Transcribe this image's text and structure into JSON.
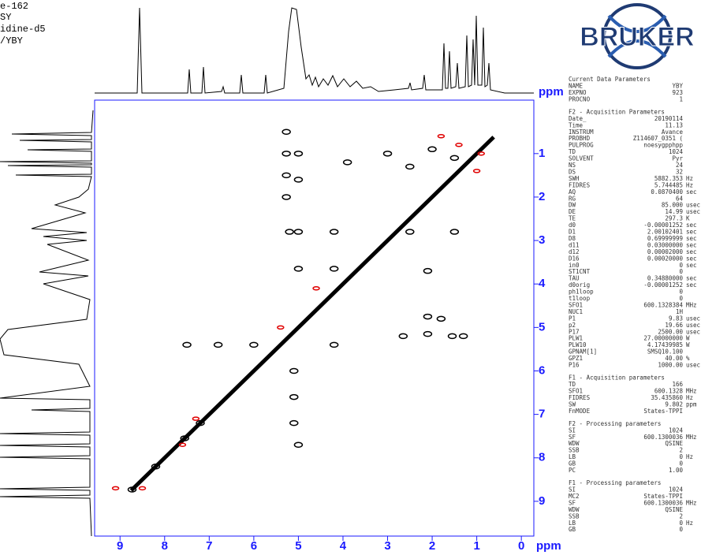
{
  "header_lines": [
    "e-162",
    "SY",
    "idine-d5",
    "/YBY"
  ],
  "logo": "BRUKER",
  "chart_data": {
    "type": "contour",
    "x_label": "ppm",
    "y_label": "ppm",
    "xlim": [
      9.57,
      -0.28
    ],
    "ylim": [
      9.8,
      -0.23
    ],
    "xticks": [
      9,
      8,
      7,
      6,
      5,
      4,
      3,
      2,
      1,
      0
    ],
    "yticks": [
      1,
      2,
      3,
      4,
      5,
      6,
      7,
      8,
      9
    ],
    "diagonal": [
      8.75,
      0.62
    ],
    "positive_color": "#000000",
    "negative_color": "#e00000",
    "peaks": [
      {
        "x": 8.73,
        "y": 8.73
      },
      {
        "x": 5.27,
        "y": 0.5
      },
      {
        "x": 5.27,
        "y": 1.0
      },
      {
        "x": 5.27,
        "y": 1.5
      },
      {
        "x": 5.27,
        "y": 2.0
      },
      {
        "x": 5.0,
        "y": 1.0
      },
      {
        "x": 5.0,
        "y": 1.6
      },
      {
        "x": 3.9,
        "y": 1.2
      },
      {
        "x": 3.0,
        "y": 1.0
      },
      {
        "x": 2.5,
        "y": 1.3
      },
      {
        "x": 2.0,
        "y": 0.9
      },
      {
        "x": 1.5,
        "y": 1.1
      },
      {
        "x": 5.2,
        "y": 2.8
      },
      {
        "x": 5.0,
        "y": 2.8
      },
      {
        "x": 4.2,
        "y": 2.8
      },
      {
        "x": 2.5,
        "y": 2.8
      },
      {
        "x": 1.5,
        "y": 2.8
      },
      {
        "x": 5.0,
        "y": 3.65
      },
      {
        "x": 4.2,
        "y": 3.65
      },
      {
        "x": 2.1,
        "y": 3.7
      },
      {
        "x": 2.1,
        "y": 4.75
      },
      {
        "x": 1.8,
        "y": 4.8
      },
      {
        "x": 2.1,
        "y": 5.15
      },
      {
        "x": 1.55,
        "y": 5.2
      },
      {
        "x": 1.3,
        "y": 5.2
      },
      {
        "x": 2.65,
        "y": 5.2
      },
      {
        "x": 7.5,
        "y": 5.4
      },
      {
        "x": 6.8,
        "y": 5.4
      },
      {
        "x": 6.0,
        "y": 5.4
      },
      {
        "x": 4.2,
        "y": 5.4
      },
      {
        "x": 5.1,
        "y": 6.0
      },
      {
        "x": 5.1,
        "y": 6.6
      },
      {
        "x": 5.1,
        "y": 7.2
      },
      {
        "x": 5.0,
        "y": 7.7
      },
      {
        "x": 7.2,
        "y": 7.2
      },
      {
        "x": 7.55,
        "y": 7.55
      },
      {
        "x": 8.2,
        "y": 8.2
      }
    ],
    "negative_peaks": [
      {
        "x": 1.0,
        "y": 1.4
      },
      {
        "x": 0.9,
        "y": 1.0
      },
      {
        "x": 1.4,
        "y": 0.8
      },
      {
        "x": 1.8,
        "y": 0.6
      },
      {
        "x": 5.4,
        "y": 5.0
      },
      {
        "x": 4.6,
        "y": 4.1
      },
      {
        "x": 7.3,
        "y": 7.1
      },
      {
        "x": 7.6,
        "y": 7.7
      },
      {
        "x": 8.5,
        "y": 8.7
      },
      {
        "x": 9.1,
        "y": 8.7
      }
    ]
  },
  "parameters": [
    {
      "title": "Current Data Parameters",
      "rows": [
        [
          "NAME",
          "YBY"
        ],
        [
          "EXPNO",
          "923"
        ],
        [
          "PROCNO",
          "1"
        ]
      ]
    },
    {
      "title": "F2 - Acquisition Parameters",
      "rows": [
        [
          "Date_",
          "20190114"
        ],
        [
          "Time",
          "11.13"
        ],
        [
          "INSTRUM",
          "Avance"
        ],
        [
          "PROBHD",
          "Z114607_0351 ("
        ],
        [
          "PULPROG",
          "noesygpphpp"
        ],
        [
          "TD",
          "1024"
        ],
        [
          "SOLVENT",
          "Pyr"
        ],
        [
          "NS",
          "24"
        ],
        [
          "DS",
          "32"
        ],
        [
          "SWH",
          "5882.353",
          "Hz"
        ],
        [
          "FIDRES",
          "5.744485",
          "Hz"
        ],
        [
          "AQ",
          "0.0870400",
          "sec"
        ],
        [
          "RG",
          "64"
        ],
        [
          "DW",
          "85.000",
          "usec"
        ],
        [
          "DE",
          "14.99",
          "usec"
        ],
        [
          "TE",
          "297.3",
          "K"
        ],
        [
          "d0",
          "-0.00001252",
          "sec"
        ],
        [
          "D1",
          "2.00102401",
          "sec"
        ],
        [
          "D8",
          "0.69999999",
          "sec"
        ],
        [
          "d11",
          "0.03000000",
          "sec"
        ],
        [
          "d12",
          "0.00002000",
          "sec"
        ],
        [
          "D16",
          "0.00020000",
          "sec"
        ],
        [
          "in0",
          "0",
          "sec"
        ],
        [
          "ST1CNT",
          "0"
        ],
        [
          "TAU",
          "0.34880000",
          "sec"
        ],
        [
          "d0orig",
          "-0.00001252",
          "sec"
        ],
        [
          "ph1loop",
          "0"
        ],
        [
          "t1loop",
          "0"
        ],
        [
          "SFO1",
          "600.1328384",
          "MHz"
        ],
        [
          "NUC1",
          "1H"
        ],
        [
          "P1",
          "9.83",
          "usec"
        ],
        [
          "p2",
          "19.66",
          "usec"
        ],
        [
          "P17",
          "2500.00",
          "usec"
        ],
        [
          "PLW1",
          "27.00000000",
          "W"
        ],
        [
          "PLW10",
          "4.17439985",
          "W"
        ],
        [
          "GPNAM[1]",
          "SMSQ10.100"
        ],
        [
          "GPZ1",
          "40.00",
          "%"
        ],
        [
          "P16",
          "1000.00",
          "usec"
        ]
      ]
    },
    {
      "title": "F1 - Acquisition parameters",
      "rows": [
        [
          "TD",
          "166"
        ],
        [
          "SFO1",
          "600.1328",
          "MHz"
        ],
        [
          "FIDRES",
          "35.435860",
          "Hz"
        ],
        [
          "SW",
          "9.802",
          "ppm"
        ],
        [
          "FnMODE",
          "States-TPPI"
        ]
      ]
    },
    {
      "title": "F2 - Processing parameters",
      "rows": [
        [
          "SI",
          "1024"
        ],
        [
          "SF",
          "600.1300036",
          "MHz"
        ],
        [
          "WDW",
          "QSINE"
        ],
        [
          "SSB",
          "2"
        ],
        [
          "LB",
          "0",
          "Hz"
        ],
        [
          "GB",
          "0"
        ],
        [
          "PC",
          "1.00"
        ]
      ]
    },
    {
      "title": "F1 - Processing parameters",
      "rows": [
        [
          "SI",
          "1024"
        ],
        [
          "MC2",
          "States-TPPI"
        ],
        [
          "SF",
          "600.1300036",
          "MHz"
        ],
        [
          "WDW",
          "QSINE"
        ],
        [
          "SSB",
          "2"
        ],
        [
          "LB",
          "0",
          "Hz"
        ],
        [
          "GB",
          "0"
        ]
      ]
    }
  ]
}
